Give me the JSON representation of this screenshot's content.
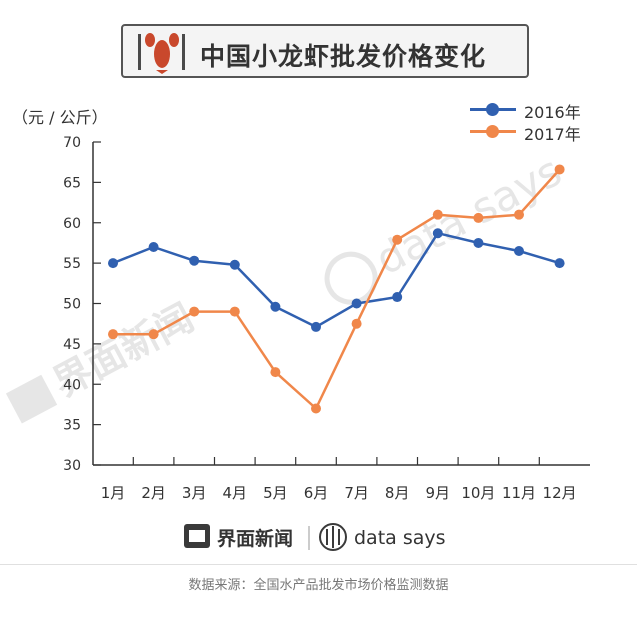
{
  "title": "中国小龙虾批发价格变化",
  "unit_label": "（元 / 公斤）",
  "colors": {
    "series_2016": "#3060b0",
    "series_2017": "#f0874a",
    "axis": "#333333",
    "grid": "#d8d8d8"
  },
  "legend": [
    {
      "label": "2016年",
      "color": "#3060b0"
    },
    {
      "label": "2017年",
      "color": "#f0874a"
    }
  ],
  "chart_data": {
    "type": "line",
    "categories": [
      "1月",
      "2月",
      "3月",
      "4月",
      "5月",
      "6月",
      "7月",
      "8月",
      "9月",
      "10月",
      "11月",
      "12月"
    ],
    "series": [
      {
        "name": "2016年",
        "values": [
          55.0,
          57.0,
          55.3,
          54.8,
          49.6,
          47.1,
          50.0,
          50.8,
          58.7,
          57.5,
          56.5,
          55.0
        ]
      },
      {
        "name": "2017年",
        "values": [
          46.2,
          46.2,
          49.0,
          49.0,
          41.5,
          37.0,
          47.5,
          57.9,
          61.0,
          60.6,
          61.0,
          66.6
        ]
      }
    ],
    "yticks": [
      30,
      35,
      40,
      45,
      50,
      55,
      60,
      65,
      70
    ],
    "ylim": [
      30,
      70
    ],
    "grid": false,
    "legend_position": "top-right"
  },
  "footer": {
    "logo_left": "界面新闻",
    "logo_right": "data says",
    "source": "数据来源：全国水产品批发市场价格监测数据"
  },
  "watermarks": [
    "界面新闻",
    "data says"
  ]
}
